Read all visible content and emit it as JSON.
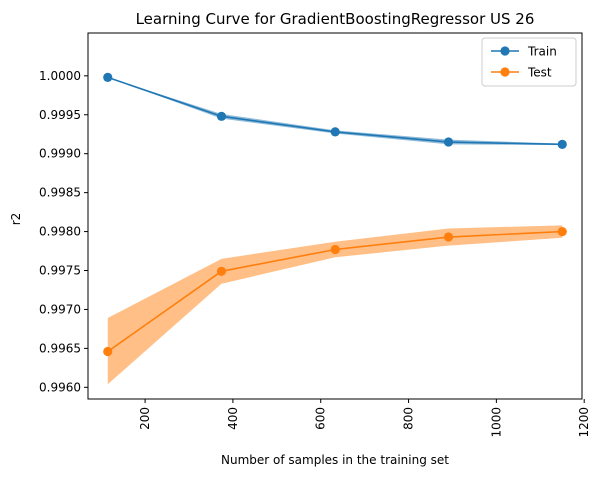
{
  "chart_data": {
    "type": "line",
    "title": "Learning Curve for GradientBoostingRegressor US 26",
    "xlabel": "Number of samples in the training set",
    "ylabel": "r2",
    "xlim": [
      70,
      1195
    ],
    "ylim": [
      0.99585,
      1.00055
    ],
    "xticks": [
      200,
      400,
      600,
      800,
      1000,
      1200
    ],
    "yticks": [
      0.996,
      0.9965,
      0.997,
      0.9975,
      0.998,
      0.9985,
      0.999,
      0.9995,
      1.0
    ],
    "ytick_labels": [
      "0.9960",
      "0.9965",
      "0.9970",
      "0.9975",
      "0.9980",
      "0.9985",
      "0.9990",
      "0.9995",
      "1.0000"
    ],
    "xtick_labels": [
      "200",
      "400",
      "600",
      "800",
      "1000",
      "1200"
    ],
    "grid": false,
    "legend_position": "top-right",
    "x": [
      115,
      374,
      633,
      891,
      1150
    ],
    "series": [
      {
        "name": "Train",
        "color": "#1f77b4",
        "values": [
          0.99998,
          0.99948,
          0.99928,
          0.99915,
          0.99912
        ],
        "band_low": [
          0.99998,
          0.99945,
          0.99926,
          0.99912,
          0.99911
        ],
        "band_high": [
          0.99998,
          0.99951,
          0.9993,
          0.99918,
          0.99913
        ]
      },
      {
        "name": "Test",
        "color": "#ff7f0e",
        "values": [
          0.99646,
          0.99749,
          0.99777,
          0.99793,
          0.998
        ],
        "band_low": [
          0.99604,
          0.99733,
          0.99767,
          0.99782,
          0.99792
        ],
        "band_high": [
          0.99689,
          0.99765,
          0.99787,
          0.99804,
          0.99808
        ]
      }
    ]
  }
}
